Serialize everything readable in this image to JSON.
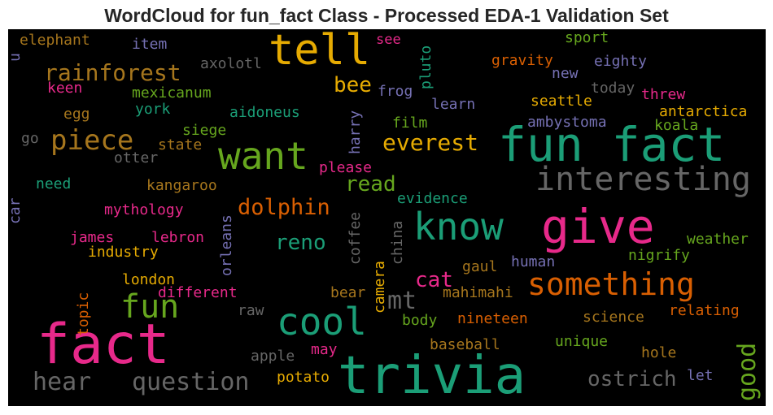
{
  "title": "WordCloud for fun_fact Class - Processed EDA-1 Validation Set",
  "colors": {
    "teal": "#1b9e77",
    "orange": "#d95f02",
    "purple": "#7570b3",
    "pink": "#e7298a",
    "green": "#66a61e",
    "gold": "#e6ab02",
    "brown": "#a6761d",
    "gray": "#666666"
  },
  "words": {
    "fact": "fact",
    "trivia": "trivia",
    "fun_fact": "fun fact",
    "give": "give",
    "tell": "tell",
    "want": "want",
    "know": "know",
    "cool": "cool",
    "interesting": "interesting",
    "something": "something",
    "fun": "fun",
    "piece": "piece",
    "rainforest": "rainforest",
    "question": "question",
    "ostrich": "ostrich",
    "hear": "hear",
    "good": "good",
    "everest": "everest",
    "dolphin": "dolphin",
    "mt": "mt",
    "reno": "reno",
    "read": "read",
    "cat": "cat",
    "bee": "bee",
    "elephant": "elephant",
    "item": "item",
    "u": "u",
    "axolotl": "axolotl",
    "see": "see",
    "pluto": "pluto",
    "sport": "sport",
    "gravity": "gravity",
    "eighty": "eighty",
    "new": "new",
    "today": "today",
    "keen": "keen",
    "mexicanum": "mexicanum",
    "frog": "frog",
    "learn": "learn",
    "seattle": "seattle",
    "threw": "threw",
    "egg": "egg",
    "york": "york",
    "aidoneus": "aidoneus",
    "antarctica": "antarctica",
    "harry": "harry",
    "film": "film",
    "ambystoma": "ambystoma",
    "koala": "koala",
    "go": "go",
    "siege": "siege",
    "state": "state",
    "otter": "otter",
    "please": "please",
    "need": "need",
    "kangaroo": "kangaroo",
    "car": "car",
    "mythology": "mythology",
    "evidence": "evidence",
    "orleans": "orleans",
    "coffee": "coffee",
    "james": "james",
    "lebron": "lebron",
    "industry": "industry",
    "china": "china",
    "weather": "weather",
    "nigrify": "nigrify",
    "gaul": "gaul",
    "human": "human",
    "camera": "camera",
    "london": "london",
    "topic": "topic",
    "different": "different",
    "bear": "bear",
    "mahimahi": "mahimahi",
    "raw": "raw",
    "nineteen": "nineteen",
    "body": "body",
    "science": "science",
    "relating": "relating",
    "unique": "unique",
    "apple": "apple",
    "may": "may",
    "baseball": "baseball",
    "hole": "hole",
    "potato": "potato",
    "let": "let"
  }
}
